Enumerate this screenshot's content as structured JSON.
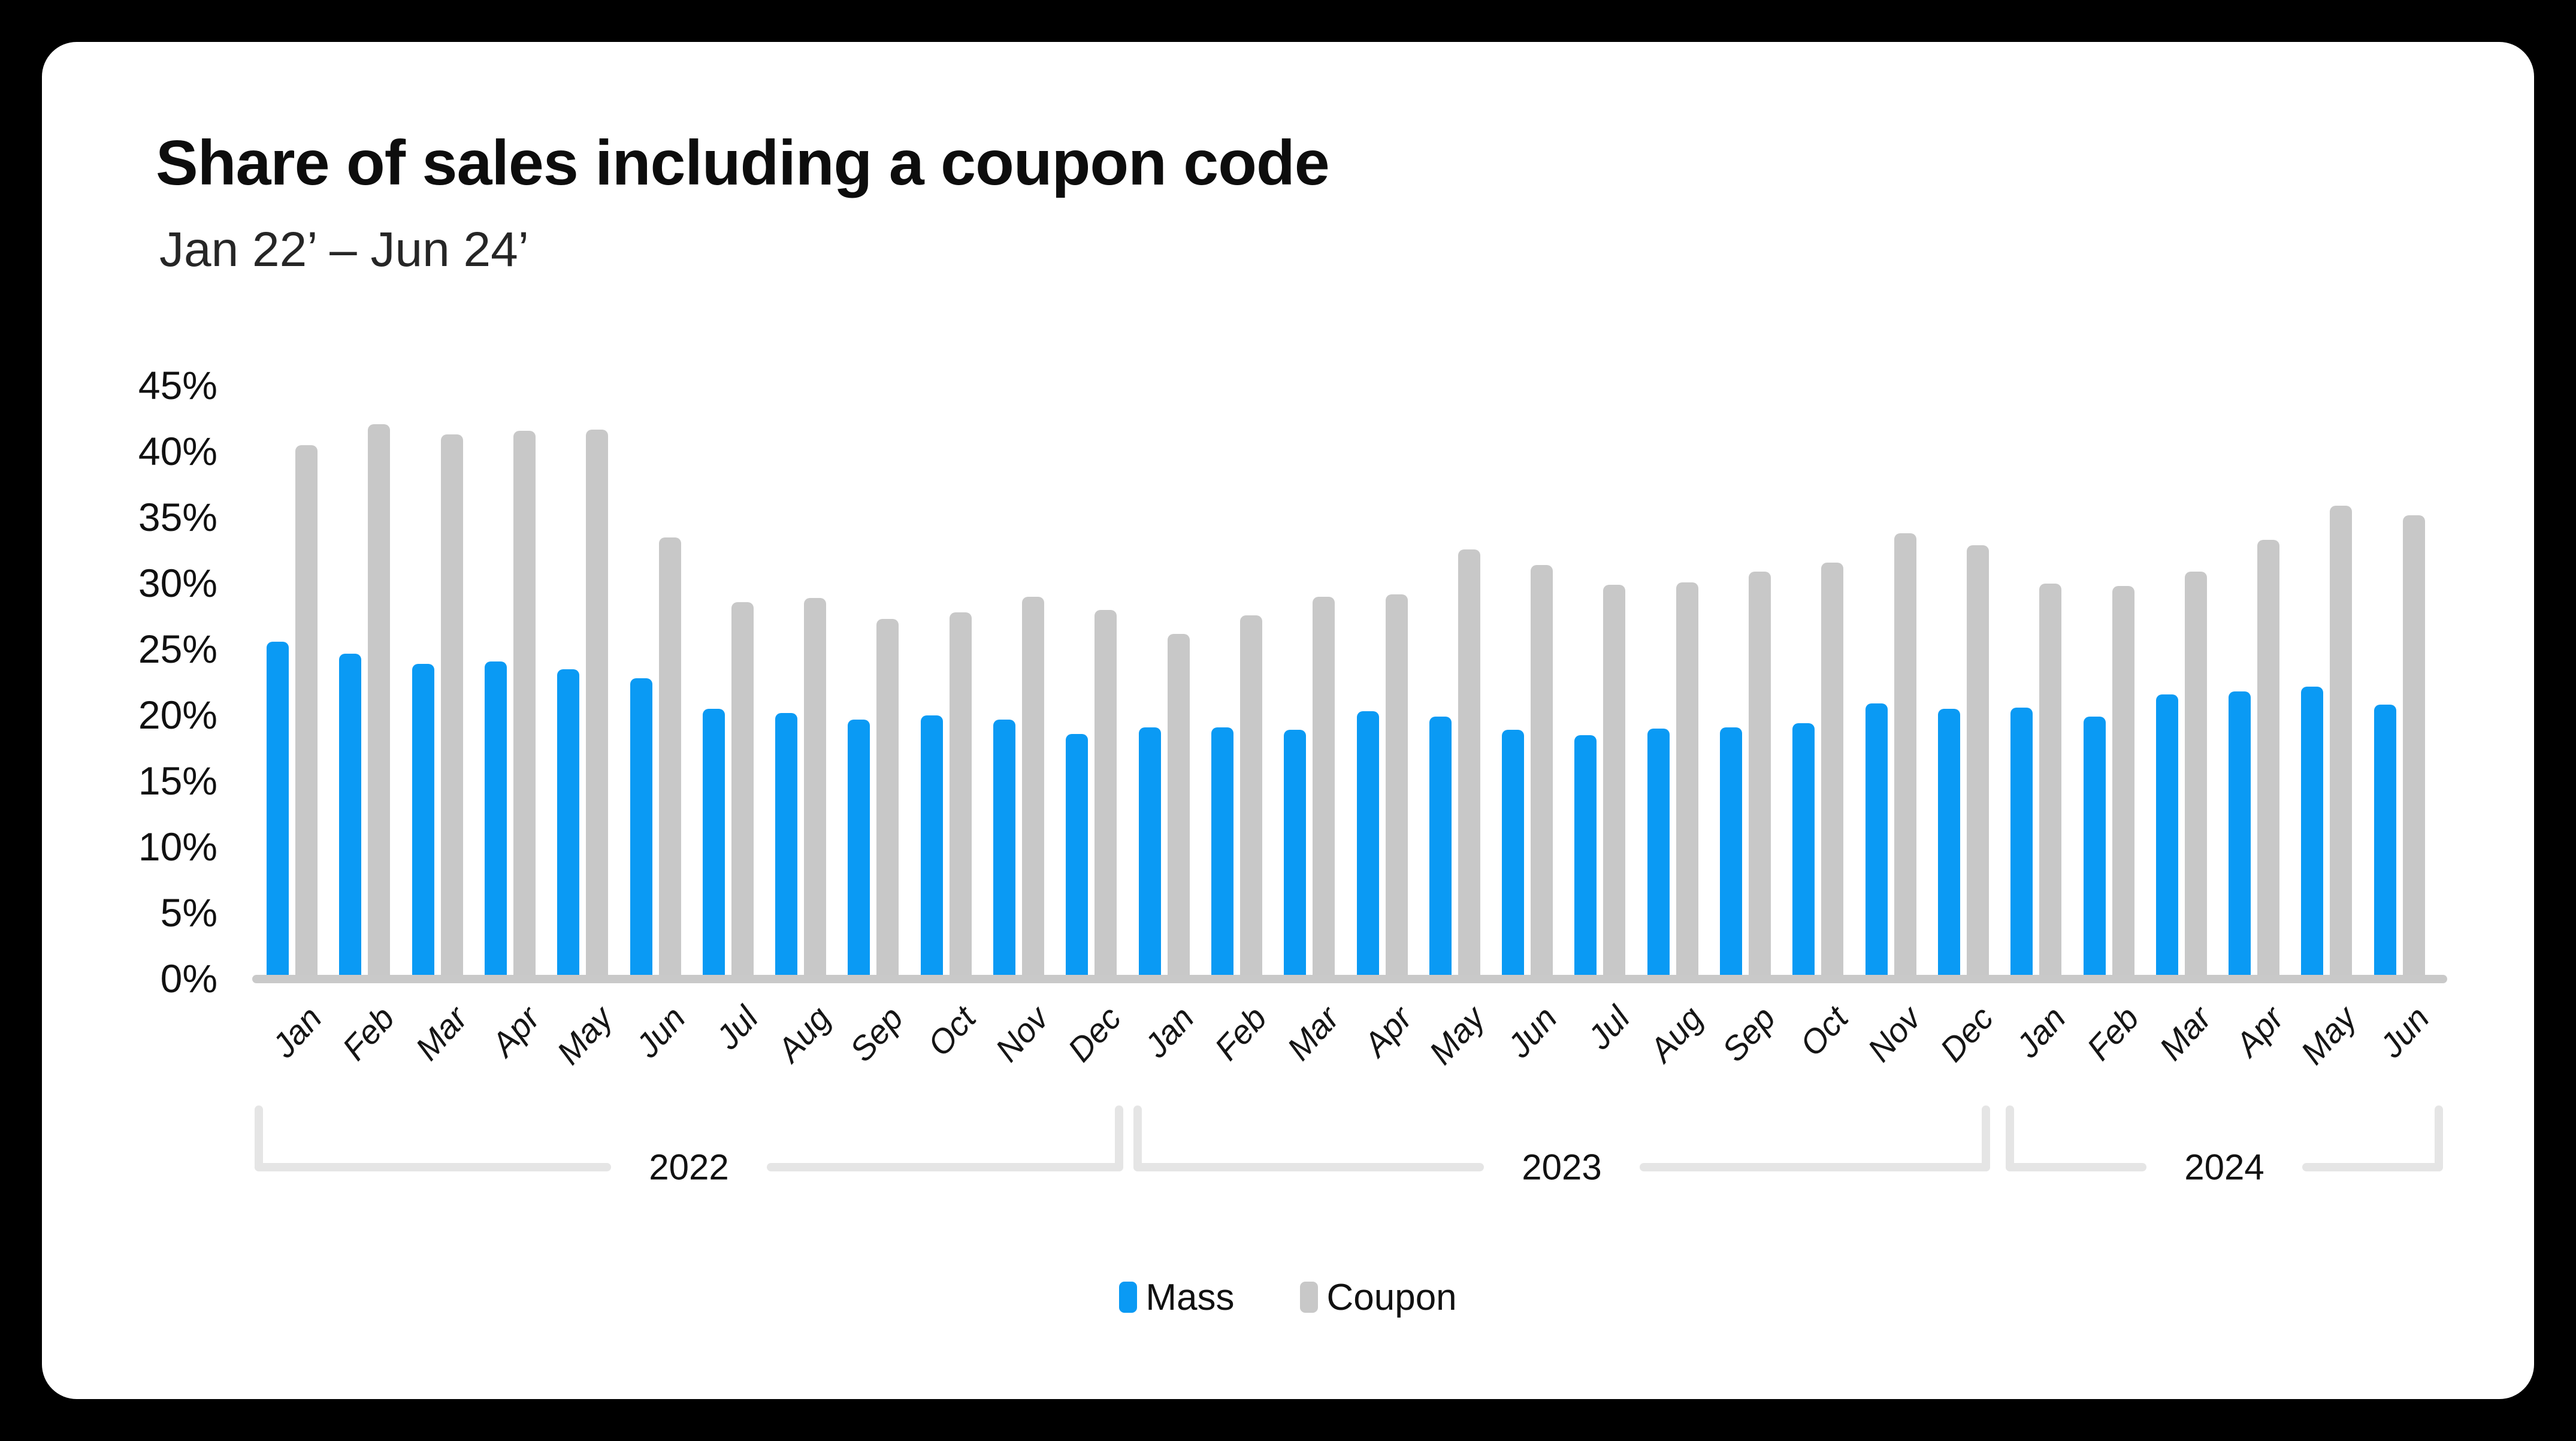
{
  "card": {
    "title": "Share of sales including a coupon code",
    "subtitle": "Jan 22’ – Jun 24’"
  },
  "colors": {
    "mass": "#0a9af4",
    "coupon": "#c8c8c8",
    "axis_line": "#c9c9c9",
    "bracket": "#e5e5e5",
    "background": "#000000",
    "card_background": "#ffffff"
  },
  "y_axis": {
    "tick_labels": [
      "45%",
      "40%",
      "35%",
      "30%",
      "25%",
      "20%",
      "15%",
      "10%",
      "5%",
      "0%"
    ],
    "min": 0,
    "max": 45,
    "step": 5
  },
  "legend": {
    "items": [
      {
        "label": "Mass",
        "color_key": "mass"
      },
      {
        "label": "Coupon",
        "color_key": "coupon"
      }
    ]
  },
  "year_groups": [
    {
      "label": "2022",
      "month_count": 12
    },
    {
      "label": "2023",
      "month_count": 12
    },
    {
      "label": "2024",
      "month_count": 6
    }
  ],
  "chart_data": {
    "type": "bar",
    "title": "Share of sales including a coupon code",
    "subtitle": "Jan 22’ – Jun 24’",
    "xlabel": "",
    "ylabel": "",
    "ylim": [
      0,
      45
    ],
    "y_tick_step": 5,
    "y_tick_format": "percent",
    "grid": false,
    "legend_position": "bottom",
    "categories": [
      "Jan",
      "Feb",
      "Mar",
      "Apr",
      "May",
      "Jun",
      "Jul",
      "Aug",
      "Sep",
      "Oct",
      "Nov",
      "Dec",
      "Jan",
      "Feb",
      "Mar",
      "Apr",
      "May",
      "Jun",
      "Jul",
      "Aug",
      "Sep",
      "Oct",
      "Nov",
      "Dec",
      "Jan",
      "Feb",
      "Mar",
      "Apr",
      "May",
      "Jun"
    ],
    "category_years": [
      "2022",
      "2022",
      "2022",
      "2022",
      "2022",
      "2022",
      "2022",
      "2022",
      "2022",
      "2022",
      "2022",
      "2022",
      "2023",
      "2023",
      "2023",
      "2023",
      "2023",
      "2023",
      "2023",
      "2023",
      "2023",
      "2023",
      "2023",
      "2023",
      "2024",
      "2024",
      "2024",
      "2024",
      "2024",
      "2024"
    ],
    "series": [
      {
        "name": "Mass",
        "values": [
          25.6,
          24.7,
          23.9,
          24.1,
          23.5,
          22.8,
          20.5,
          20.2,
          19.7,
          20.0,
          19.7,
          18.6,
          19.1,
          19.1,
          18.9,
          20.3,
          19.9,
          18.9,
          18.5,
          19.0,
          19.1,
          19.4,
          20.9,
          20.5,
          20.6,
          19.9,
          21.6,
          21.8,
          22.2,
          20.8
        ]
      },
      {
        "name": "Coupon",
        "values": [
          40.5,
          42.1,
          41.3,
          41.6,
          41.7,
          33.5,
          28.6,
          28.9,
          27.3,
          27.8,
          29.0,
          28.0,
          26.2,
          27.6,
          29.0,
          29.2,
          32.6,
          31.4,
          29.9,
          30.1,
          30.9,
          31.6,
          33.8,
          32.9,
          30.0,
          29.8,
          30.9,
          33.3,
          35.9,
          35.2
        ]
      }
    ]
  }
}
